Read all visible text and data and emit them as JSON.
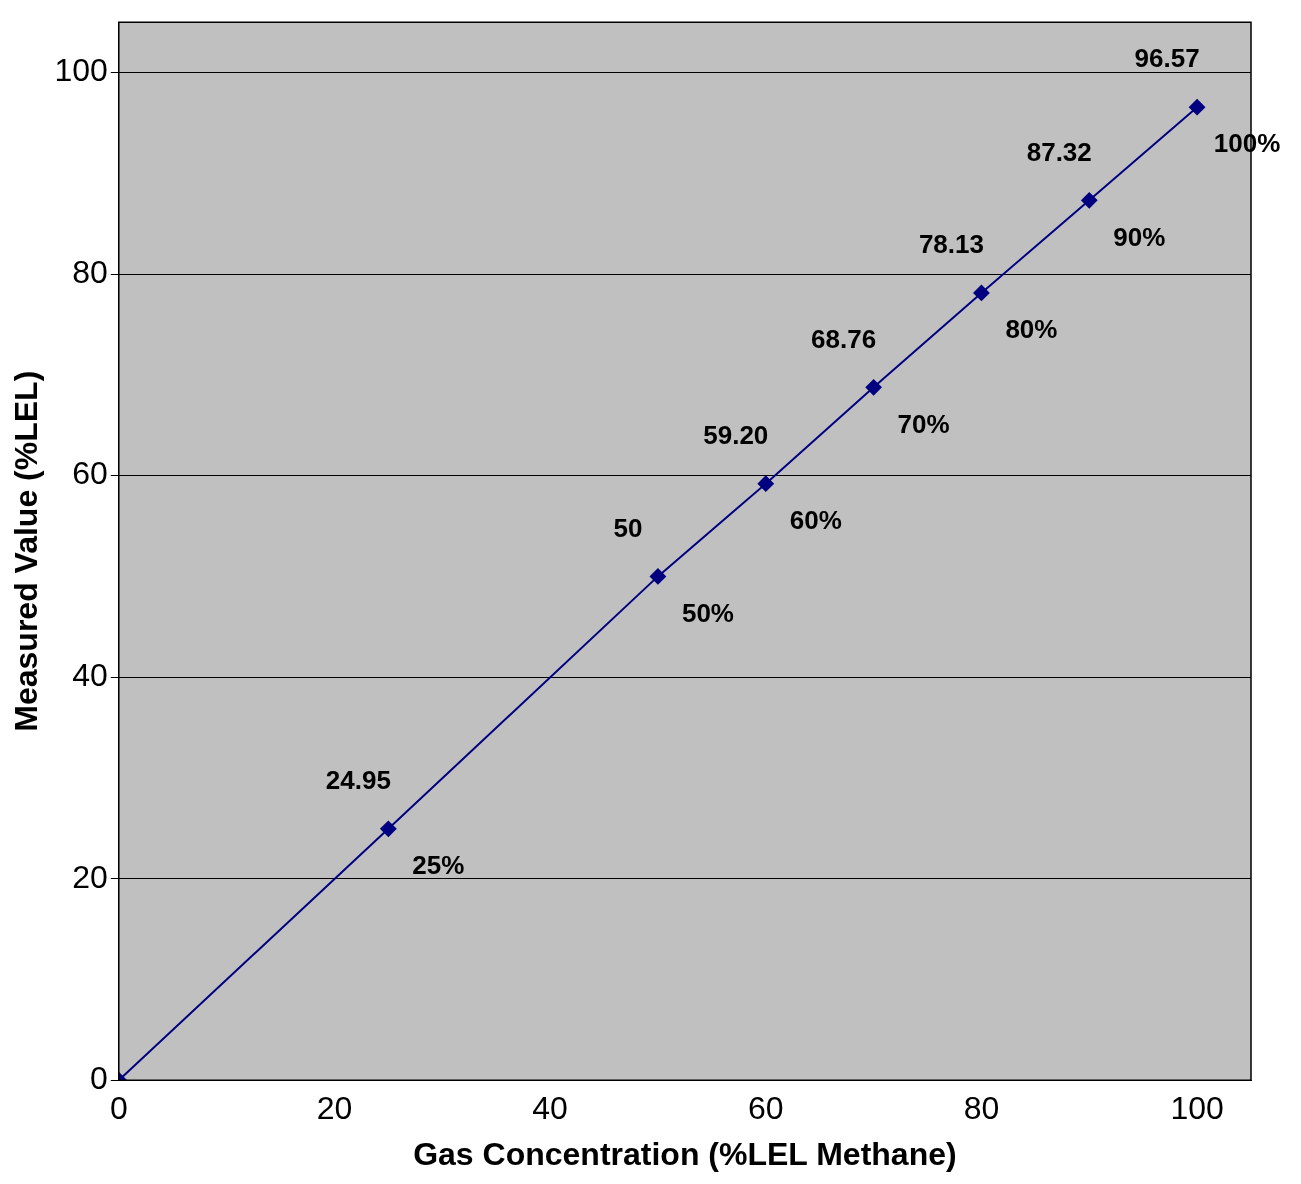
{
  "chart_data": {
    "type": "line",
    "xlabel": "Gas Concentration (%LEL Methane)",
    "ylabel": "Measured Value (%LEL)",
    "x": [
      0,
      25,
      50,
      60,
      70,
      80,
      90,
      100
    ],
    "series": [
      {
        "color": "#000080",
        "values": [
          0,
          24.95,
          50,
          59.2,
          68.76,
          78.13,
          87.32,
          96.57
        ],
        "value_labels": [
          null,
          "24.95",
          "50",
          "59.20",
          "68.76",
          "78.13",
          "87.32",
          "96.57"
        ]
      }
    ],
    "xlim": [
      0,
      105
    ],
    "ylim": [
      0,
      105
    ],
    "xticks": [
      0,
      20,
      40,
      60,
      80,
      100
    ],
    "yticks": [
      0,
      20,
      40,
      60,
      80,
      100
    ],
    "grid": "y",
    "marker": "diamond",
    "annotations": [
      {
        "text": "25%",
        "x": 25,
        "y": 24.95
      },
      {
        "text": "50%",
        "x": 50,
        "y": 50
      },
      {
        "text": "60%",
        "x": 60,
        "y": 59.2
      },
      {
        "text": "70%",
        "x": 70,
        "y": 68.76
      },
      {
        "text": "80%",
        "x": 80,
        "y": 78.13
      },
      {
        "text": "90%",
        "x": 90,
        "y": 87.32
      },
      {
        "text": "100%",
        "x": 100,
        "y": 96.57
      }
    ]
  }
}
